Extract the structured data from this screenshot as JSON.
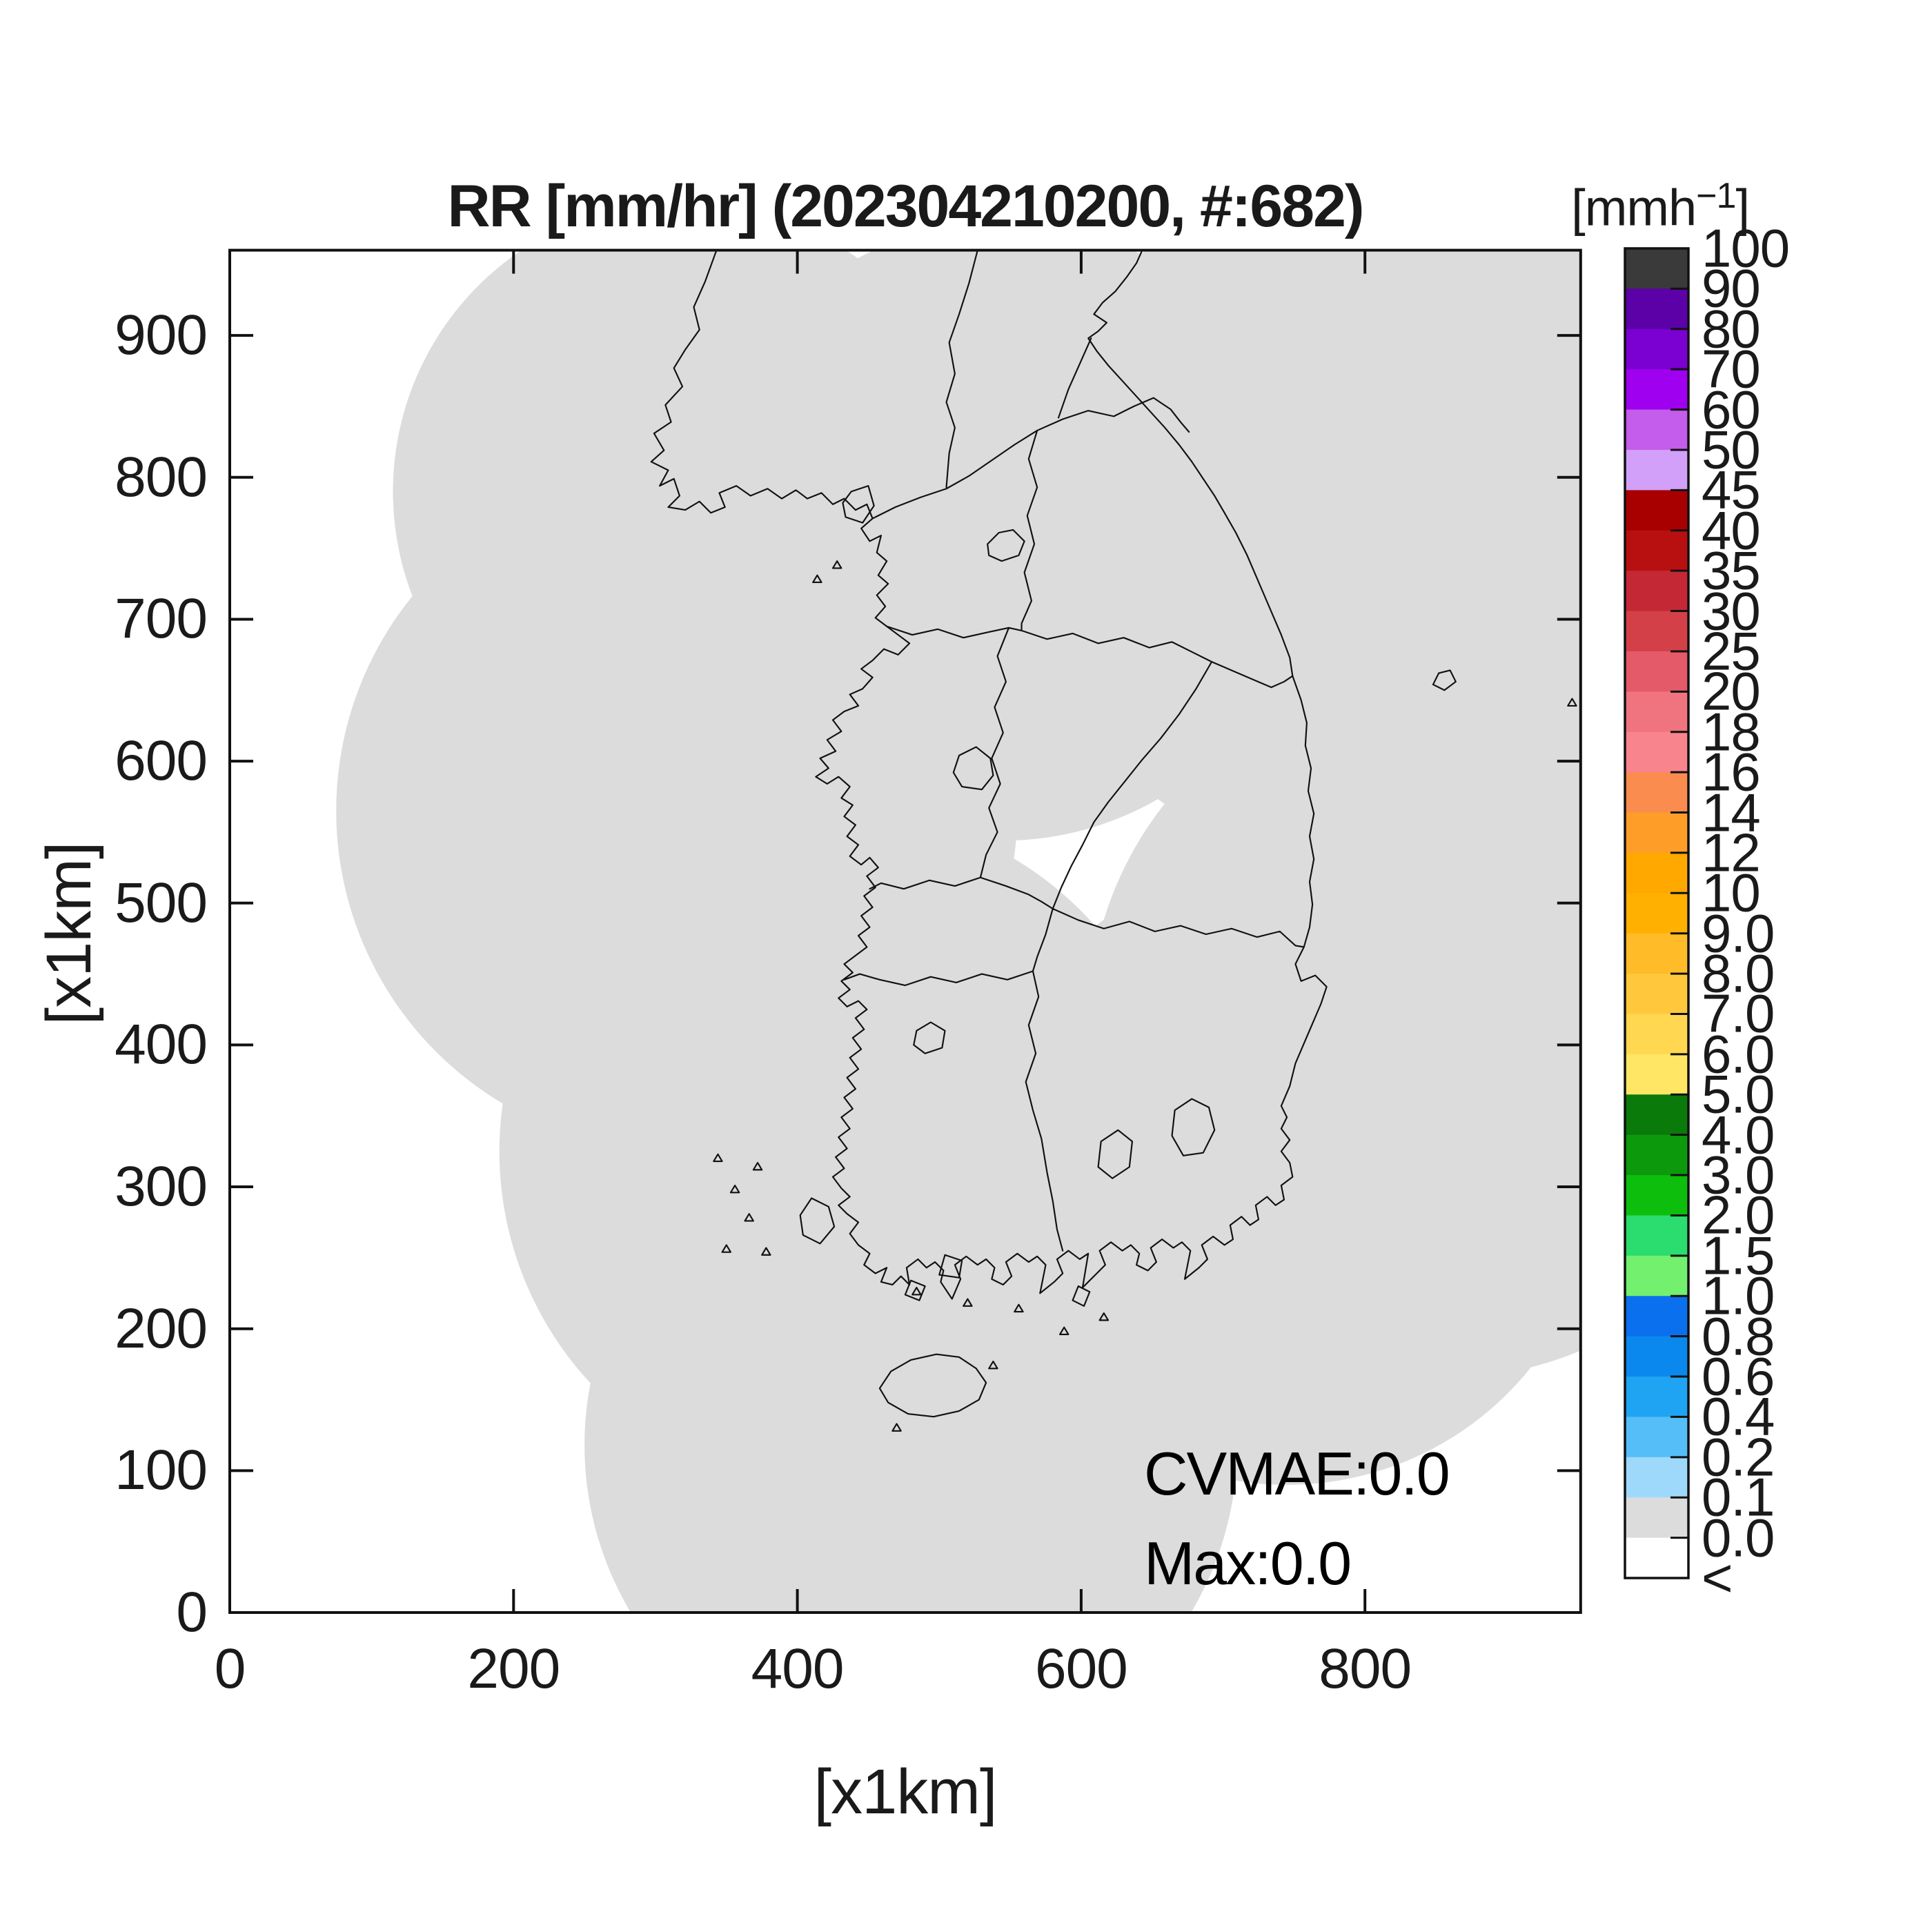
{
  "title": "RR [mm/hr] (202304210200, #:682)",
  "axes": {
    "xlabel": "[x1km]",
    "ylabel": "[x1km]",
    "x_tick_labels": [
      "0",
      "200",
      "400",
      "600",
      "800"
    ],
    "y_tick_labels": [
      "0",
      "100",
      "200",
      "300",
      "400",
      "500",
      "600",
      "700",
      "800",
      "900"
    ]
  },
  "annotations": {
    "cvmae": "CVMAE:0.0",
    "max": "Max:0.0"
  },
  "colorbar": {
    "unit_prefix": "[mmh",
    "unit_sup": "−1",
    "unit_suffix": "]",
    "labels_top_to_bottom": [
      "100",
      "90",
      "80",
      "70",
      "60",
      "50",
      "45",
      "40",
      "35",
      "30",
      "25",
      "20",
      "18",
      "16",
      "14",
      "12",
      "10",
      "9.0",
      "8.0",
      "7.0",
      "6.0",
      "5.0",
      "4.0",
      "3.0",
      "2.0",
      "1.5",
      "1.0",
      "0.8",
      "0.6",
      "0.4",
      "0.2",
      "0.1",
      "0.0",
      "<"
    ],
    "colors_top_to_bottom": [
      "#3a3a3a",
      "#5c00a8",
      "#7b00d2",
      "#a000f0",
      "#c45cec",
      "#d2a0f8",
      "#a80000",
      "#b81010",
      "#c42834",
      "#d44048",
      "#e55a68",
      "#f07480",
      "#f8848e",
      "#fb8c50",
      "#fe9e28",
      "#ffa800",
      "#ffb000",
      "#ffbc28",
      "#ffc83c",
      "#ffd750",
      "#ffe664",
      "#0a7a0a",
      "#0c9a0c",
      "#0dbe0d",
      "#2bdc6e",
      "#72f06e",
      "#0a70ee",
      "#0a88ee",
      "#1fa4f4",
      "#55bef8",
      "#9ed9fb",
      "#dcdcdc",
      "#ffffff"
    ]
  },
  "chart_data": {
    "type": "heatmap",
    "title": "RR [mm/hr] (202304210200, #:682)",
    "variable": "RR",
    "units": "mm/hr",
    "timestamp": "202304210200",
    "sample_count": 682,
    "xlabel": "[x1km]",
    "ylabel": "[x1km]",
    "xlim": [
      0,
      952
    ],
    "ylim": [
      0,
      960
    ],
    "x_ticks": [
      0,
      200,
      400,
      600,
      800
    ],
    "y_ticks": [
      0,
      100,
      200,
      300,
      400,
      500,
      600,
      700,
      800,
      900
    ],
    "grid": false,
    "legend_position": "right-colorbar",
    "colorbar_unit": "[mmh-1]",
    "scale_levels_top_to_bottom": [
      "100",
      "90",
      "80",
      "70",
      "60",
      "50",
      "45",
      "40",
      "35",
      "30",
      "25",
      "20",
      "18",
      "16",
      "14",
      "12",
      "10",
      "9.0",
      "8.0",
      "7.0",
      "6.0",
      "5.0",
      "4.0",
      "3.0",
      "2.0",
      "1.5",
      "1.0",
      "0.8",
      "0.6",
      "0.4",
      "0.2",
      "0.1",
      "0.0",
      "<"
    ],
    "scale_colors_top_to_bottom": [
      "#3a3a3a",
      "#5c00a8",
      "#7b00d2",
      "#a000f0",
      "#c45cec",
      "#d2a0f8",
      "#a80000",
      "#b81010",
      "#c42834",
      "#d44048",
      "#e55a68",
      "#f07480",
      "#f8848e",
      "#fb8c50",
      "#fe9e28",
      "#ffa800",
      "#ffb000",
      "#ffbc28",
      "#ffc83c",
      "#ffd750",
      "#ffe664",
      "#0a7a0a",
      "#0c9a0c",
      "#0dbe0d",
      "#2bdc6e",
      "#72f06e",
      "#0a70ee",
      "#0a88ee",
      "#1fa4f4",
      "#55bef8",
      "#9ed9fb",
      "#dcdcdc",
      "#ffffff"
    ],
    "field_summary": "Rain rate field is uniformly 0.0 mm/hr; radar coverage region rendered as 0.0 band (light gray), outside coverage is below-threshold (white)",
    "cvmae": 0.0,
    "max": 0.0,
    "coverage_color": "#dcdcdc",
    "radar_coverage_circles_km": [
      {
        "cx": 320,
        "cy": 790,
        "r": 205
      },
      {
        "cx": 545,
        "cy": 762,
        "r": 218
      },
      {
        "cx": 800,
        "cy": 770,
        "r": 245
      },
      {
        "cx": 925,
        "cy": 585,
        "r": 250
      },
      {
        "cx": 855,
        "cy": 415,
        "r": 250
      },
      {
        "cx": 745,
        "cy": 310,
        "r": 220
      },
      {
        "cx": 315,
        "cy": 565,
        "r": 240
      },
      {
        "cx": 430,
        "cy": 325,
        "r": 240
      },
      {
        "cx": 480,
        "cy": 118,
        "r": 230
      }
    ]
  }
}
